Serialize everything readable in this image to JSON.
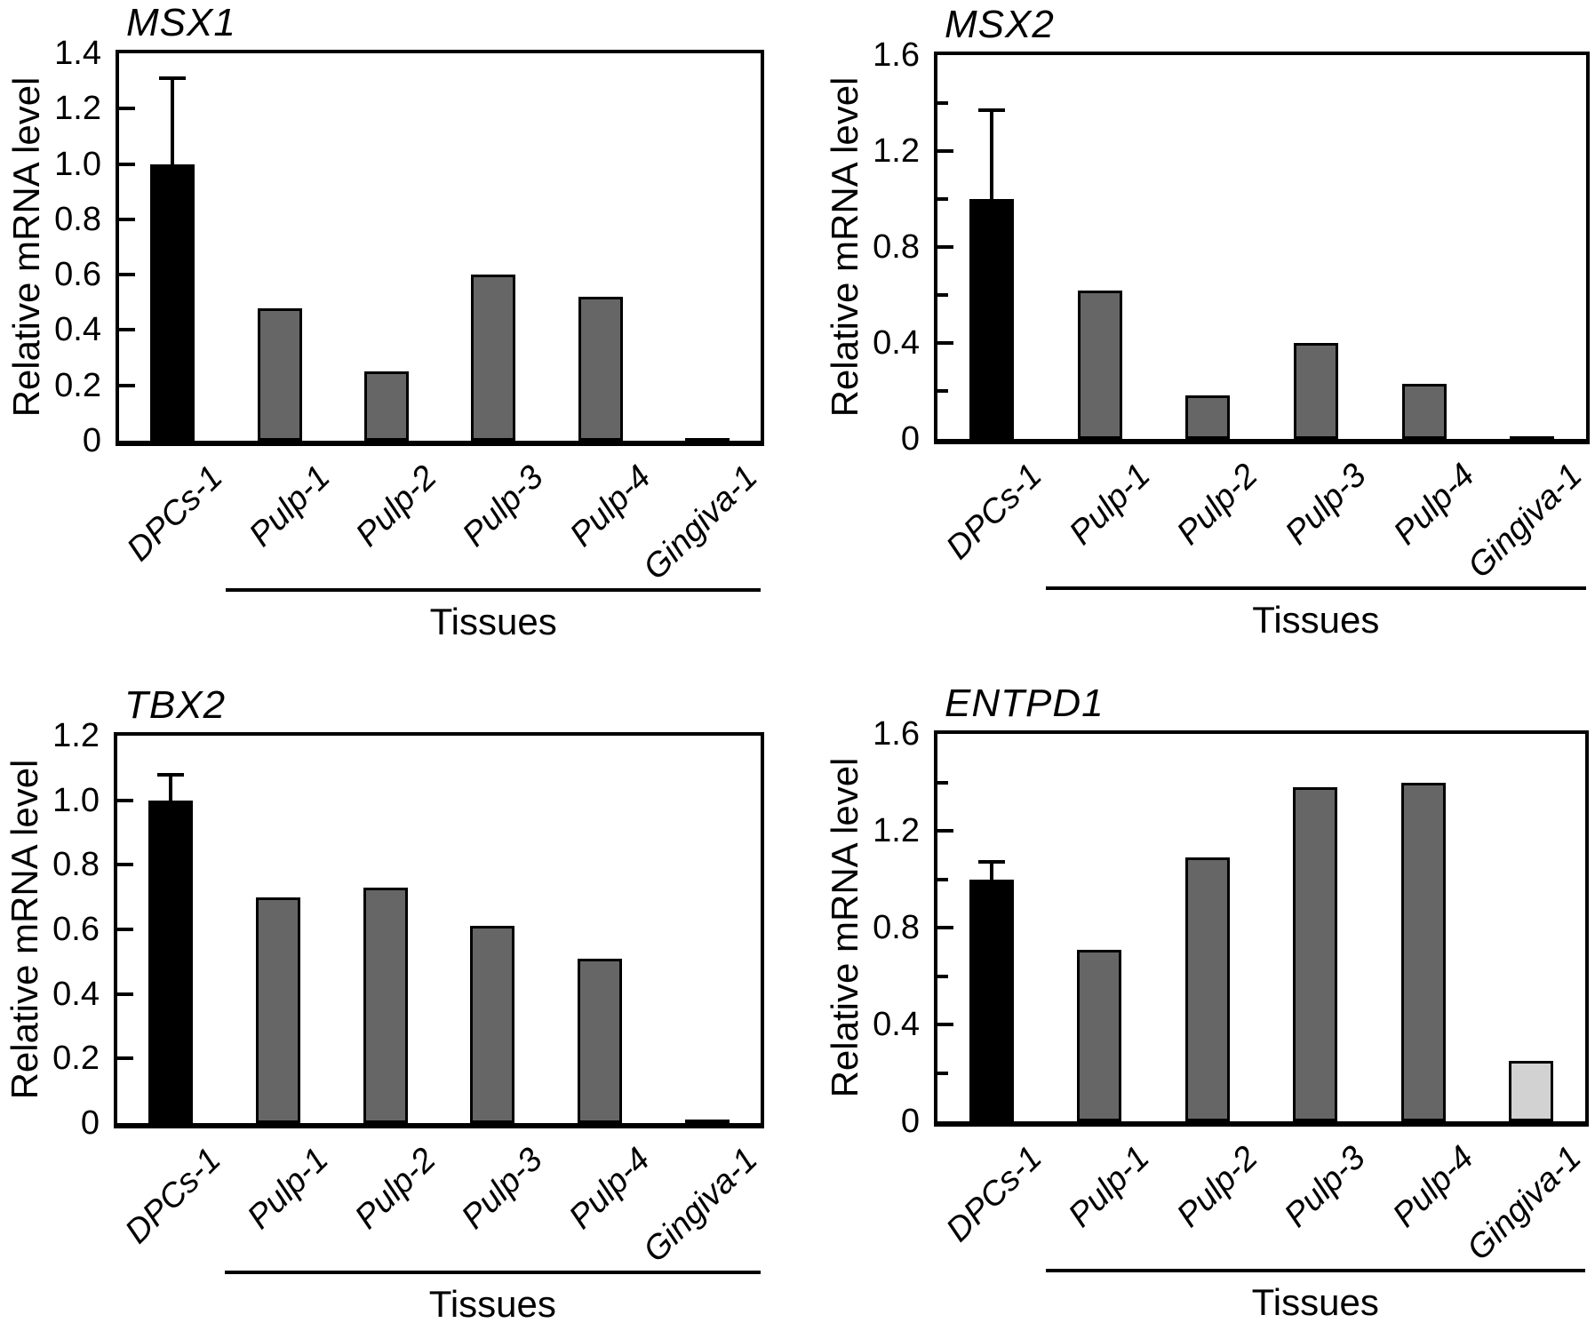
{
  "figure": {
    "background": "#ffffff",
    "description_colors": {
      "reference_bar": "#000000",
      "tissue_bar": "#666666",
      "gingiva_light_bar": "#d2d2d2",
      "axis": "#000000"
    }
  },
  "chart_data": [
    {
      "type": "bar",
      "title": "MSX1",
      "ylabel": "Relative mRNA level",
      "xlabel": "",
      "group_label": "Tissues",
      "ylim": [
        0,
        1.4
      ],
      "grid": false,
      "legend": "none",
      "categories": [
        "DPCs-1",
        "Pulp-1",
        "Pulp-2",
        "Pulp-3",
        "Pulp-4",
        "Gingiva-1"
      ],
      "values": [
        1.0,
        0.48,
        0.25,
        0.6,
        0.52,
        0.01
      ],
      "error_plus": [
        0.31,
        0,
        0,
        0,
        0,
        0
      ],
      "bar_colors": [
        "#000000",
        "#666666",
        "#666666",
        "#666666",
        "#666666",
        "#666666"
      ],
      "ytick_values": [
        1.4,
        1.2,
        1.0,
        0.8,
        0.6,
        0.4,
        0.2,
        0
      ],
      "ytick_labels": [
        "1.4",
        "1.2",
        "1.0",
        "0.8",
        "0.6",
        "0.4",
        "0.2",
        "0"
      ],
      "minor_tick_values": []
    },
    {
      "type": "bar",
      "title": "MSX2",
      "ylabel": "Relative mRNA level",
      "xlabel": "",
      "group_label": "Tissues",
      "ylim": [
        0,
        1.6
      ],
      "grid": false,
      "legend": "none",
      "categories": [
        "DPCs-1",
        "Pulp-1",
        "Pulp-2",
        "Pulp-3",
        "Pulp-4",
        "Gingiva-1"
      ],
      "values": [
        1.0,
        0.62,
        0.18,
        0.4,
        0.23,
        0.01
      ],
      "error_plus": [
        0.37,
        0,
        0,
        0,
        0,
        0
      ],
      "bar_colors": [
        "#000000",
        "#666666",
        "#666666",
        "#666666",
        "#666666",
        "#666666"
      ],
      "ytick_values": [
        1.6,
        1.2,
        0.8,
        0.4,
        0
      ],
      "ytick_labels": [
        "1.6",
        "1.2",
        "0.8",
        "0.4",
        "0"
      ],
      "minor_tick_values": [
        1.4,
        1.0,
        0.6,
        0.2
      ]
    },
    {
      "type": "bar",
      "title": "TBX2",
      "ylabel": "Relative mRNA level",
      "xlabel": "",
      "group_label": "Tissues",
      "ylim": [
        0,
        1.2
      ],
      "grid": false,
      "legend": "none",
      "categories": [
        "DPCs-1",
        "Pulp-1",
        "Pulp-2",
        "Pulp-3",
        "Pulp-4",
        "Gingiva-1"
      ],
      "values": [
        1.0,
        0.7,
        0.73,
        0.61,
        0.51,
        0.01
      ],
      "error_plus": [
        0.08,
        0,
        0,
        0,
        0,
        0
      ],
      "bar_colors": [
        "#000000",
        "#666666",
        "#666666",
        "#666666",
        "#666666",
        "#666666"
      ],
      "ytick_values": [
        1.2,
        1.0,
        0.8,
        0.6,
        0.4,
        0.2,
        0
      ],
      "ytick_labels": [
        "1.2",
        "1.0",
        "0.8",
        "0.6",
        "0.4",
        "0.2",
        "0"
      ],
      "minor_tick_values": []
    },
    {
      "type": "bar",
      "title": "ENTPD1",
      "ylabel": "Relative mRNA level",
      "xlabel": "",
      "group_label": "Tissues",
      "ylim": [
        0,
        1.6
      ],
      "grid": false,
      "legend": "none",
      "categories": [
        "DPCs-1",
        "Pulp-1",
        "Pulp-2",
        "Pulp-3",
        "Pulp-4",
        "Gingiva-1"
      ],
      "values": [
        1.0,
        0.71,
        1.09,
        1.38,
        1.4,
        0.25
      ],
      "error_plus": [
        0.07,
        0,
        0,
        0,
        0,
        0
      ],
      "bar_colors": [
        "#000000",
        "#666666",
        "#666666",
        "#666666",
        "#666666",
        "#d2d2d2"
      ],
      "ytick_values": [
        1.6,
        1.2,
        0.8,
        0.4,
        0
      ],
      "ytick_labels": [
        "1.6",
        "1.2",
        "0.8",
        "0.4",
        "0"
      ],
      "minor_tick_values": [
        1.4,
        1.0,
        0.6,
        0.2
      ]
    }
  ]
}
